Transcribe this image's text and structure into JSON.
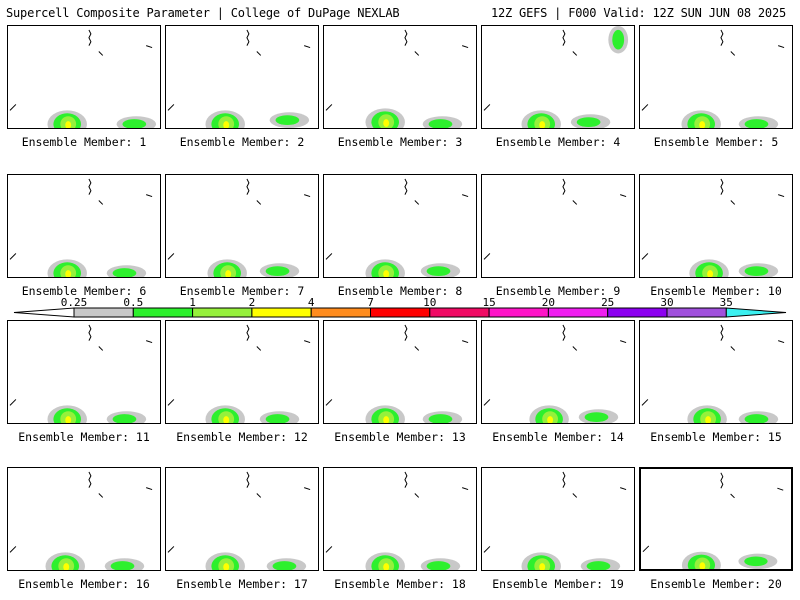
{
  "header": {
    "title_left": "Supercell Composite Parameter | College of DuPage NEXLAB",
    "title_right": "12Z GEFS | F000 Valid: 12Z SUN JUN 08 2025"
  },
  "legend": {
    "thresholds": [
      "0.25",
      "0.5",
      "1",
      "2",
      "4",
      "7",
      "10",
      "15",
      "20",
      "25",
      "30",
      "35"
    ],
    "colors": [
      "#c8c8c8",
      "#2df02d",
      "#96f03c",
      "#ffff00",
      "#ff8c1e",
      "#ff0000",
      "#f00a64",
      "#ff14c8",
      "#f01ef0",
      "#8c00f0",
      "#a050dc",
      "#3cf0f0"
    ]
  },
  "members": [
    {
      "label": "Ensemble Member: 1"
    },
    {
      "label": "Ensemble Member: 2"
    },
    {
      "label": "Ensemble Member: 3"
    },
    {
      "label": "Ensemble Member: 4"
    },
    {
      "label": "Ensemble Member: 5"
    },
    {
      "label": "Ensemble Member: 6"
    },
    {
      "label": "Ensemble Member: 7"
    },
    {
      "label": "Ensemble Member: 8"
    },
    {
      "label": "Ensemble Member: 9"
    },
    {
      "label": "Ensemble Member: 10"
    },
    {
      "label": "Ensemble Member: 11"
    },
    {
      "label": "Ensemble Member: 12"
    },
    {
      "label": "Ensemble Member: 13"
    },
    {
      "label": "Ensemble Member: 14"
    },
    {
      "label": "Ensemble Member: 15"
    },
    {
      "label": "Ensemble Member: 16"
    },
    {
      "label": "Ensemble Member: 17"
    },
    {
      "label": "Ensemble Member: 18"
    },
    {
      "label": "Ensemble Member: 19"
    },
    {
      "label": "Ensemble Member: 20"
    }
  ]
}
